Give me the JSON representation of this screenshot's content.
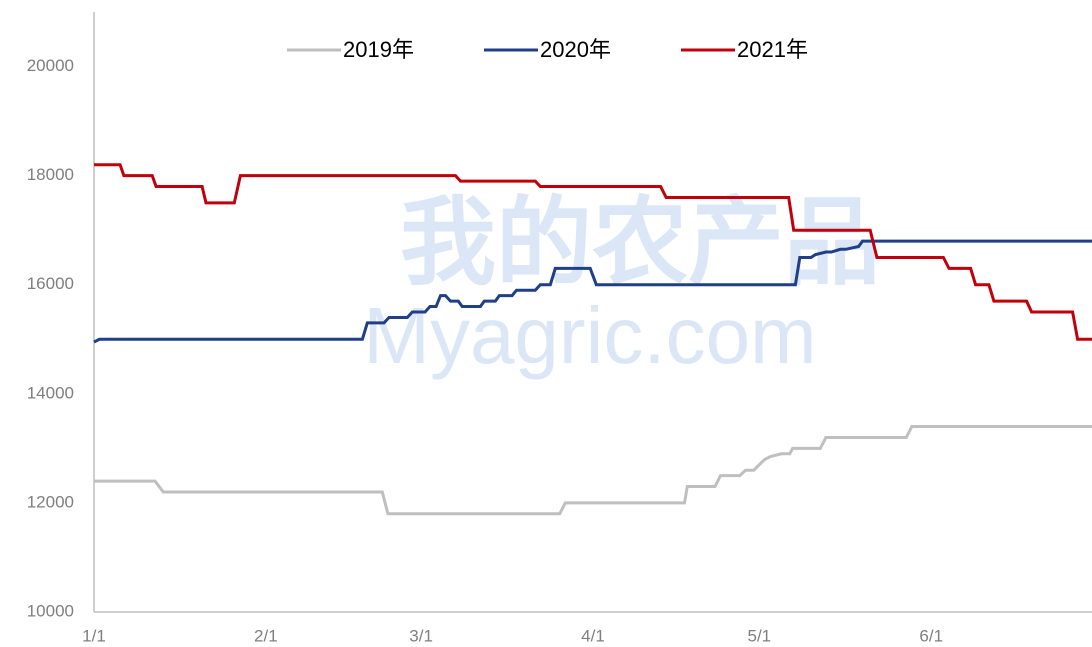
{
  "chart_data": {
    "type": "line",
    "watermark": [
      "我的农产品",
      "Myagric.com"
    ],
    "legend": "top",
    "xlim": [
      0,
      180
    ],
    "xticks": [
      {
        "value": 0,
        "label": "1/1"
      },
      {
        "value": 31,
        "label": "2/1"
      },
      {
        "value": 59,
        "label": "3/1"
      },
      {
        "value": 90,
        "label": "4/1"
      },
      {
        "value": 120,
        "label": "5/1"
      },
      {
        "value": 151,
        "label": "6/1"
      }
    ],
    "ylim": [
      10000,
      21000
    ],
    "yticks": [
      10000,
      12000,
      14000,
      16000,
      18000,
      20000
    ],
    "grid": false,
    "series": [
      {
        "name": "2019年",
        "color": "#bfbfbf",
        "x": [
          0,
          11,
          12.5,
          52,
          53,
          84,
          85,
          106.5,
          107,
          112,
          113,
          116.5,
          117.5,
          119,
          120,
          121,
          122,
          124,
          125.5,
          126,
          131,
          132,
          146.5,
          147.5,
          180
        ],
        "values": [
          12400,
          12400,
          12200,
          12200,
          11800,
          11800,
          12000,
          12000,
          12300,
          12300,
          12500,
          12500,
          12600,
          12600,
          12700,
          12800,
          12850,
          12900,
          12900,
          13000,
          13000,
          13200,
          13200,
          13400,
          13400
        ]
      },
      {
        "name": "2020年",
        "color": "#1f3f88",
        "x": [
          0,
          1,
          48.4,
          49.3,
          52.3,
          53.2,
          56.5,
          57.4,
          59.7,
          60.6,
          61.7,
          62.5,
          63.4,
          64.3,
          65.7,
          66.4,
          69.7,
          70.4,
          72.4,
          73.1,
          75.4,
          76.2,
          79.6,
          80.5,
          82.3,
          83.2,
          89.5,
          90.6,
          126.5,
          127.3,
          129.3,
          130.1,
          132,
          133,
          134.6,
          135.6,
          137.9,
          138.6,
          180
        ],
        "values": [
          14950,
          15000,
          15000,
          15300,
          15300,
          15400,
          15400,
          15500,
          15500,
          15600,
          15600,
          15800,
          15800,
          15700,
          15700,
          15600,
          15600,
          15700,
          15700,
          15800,
          15800,
          15900,
          15900,
          16000,
          16000,
          16300,
          16300,
          16000,
          16000,
          16500,
          16500,
          16550,
          16600,
          16600,
          16650,
          16650,
          16700,
          16800,
          16800
        ]
      },
      {
        "name": "2021年",
        "color": "#c0000b",
        "x": [
          0,
          4.7,
          5.4,
          10.5,
          11.2,
          19.5,
          20.2,
          25.3,
          26.4,
          65.2,
          66.1,
          79.6,
          80.5,
          102.2,
          103.2,
          125.3,
          126.2,
          140,
          141.2,
          153.2,
          154.2,
          158.1,
          159,
          161.4,
          162.3,
          168.2,
          169.1,
          176.5,
          177.4,
          180
        ],
        "values": [
          18200,
          18200,
          18000,
          18000,
          17800,
          17800,
          17500,
          17500,
          18000,
          18000,
          17900,
          17900,
          17800,
          17800,
          17600,
          17600,
          17000,
          17000,
          16500,
          16500,
          16300,
          16300,
          16000,
          16000,
          15700,
          15700,
          15500,
          15500,
          15000,
          15000
        ]
      }
    ]
  }
}
